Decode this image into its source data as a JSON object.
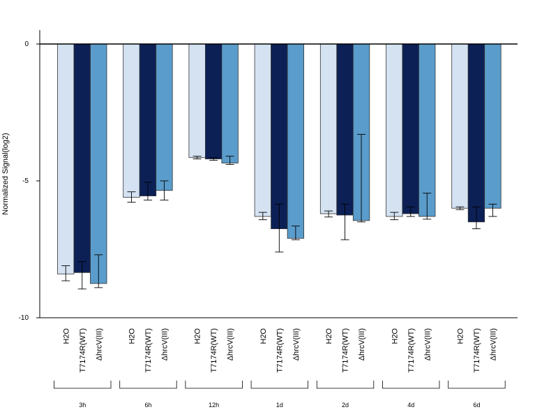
{
  "chart_data": {
    "type": "bar",
    "ylabel": "Normalized Signal(log2)",
    "xlabel": "",
    "ylim": [
      -10,
      0.5
    ],
    "yticks": [
      0,
      -5,
      -10
    ],
    "groups": [
      "3h",
      "6h",
      "12h",
      "1d",
      "2d",
      "4d",
      "6d"
    ],
    "bar_labels": [
      "H2O",
      "T7174R(WT)",
      "ΔhrcV(III)"
    ],
    "series": [
      {
        "color": "#d4e2f2",
        "values": [
          -8.4,
          -5.6,
          -4.15,
          -6.3,
          -6.2,
          -6.3,
          -6.0
        ],
        "err_low": [
          -8.65,
          -5.78,
          -4.2,
          -6.42,
          -6.32,
          -6.42,
          -6.05
        ],
        "err_high": [
          -8.1,
          -5.4,
          -4.1,
          -6.15,
          -6.1,
          -6.15,
          -5.95
        ]
      },
      {
        "color": "#0c2056",
        "values": [
          -8.35,
          -5.55,
          -4.2,
          -6.75,
          -6.25,
          -6.2,
          -6.5
        ],
        "err_low": [
          -8.95,
          -5.7,
          -4.25,
          -7.6,
          -7.15,
          -6.3,
          -6.75
        ],
        "err_high": [
          -7.95,
          -5.05,
          -4.15,
          -5.85,
          -5.85,
          -5.95,
          -5.95
        ]
      },
      {
        "color": "#5a9ccb",
        "values": [
          -8.75,
          -5.35,
          -4.35,
          -7.1,
          -6.45,
          -6.3,
          -6.0
        ],
        "err_low": [
          -8.9,
          -5.7,
          -4.4,
          -7.15,
          -6.5,
          -6.4,
          -6.3
        ],
        "err_high": [
          -7.7,
          -5.0,
          -4.1,
          -6.65,
          -3.3,
          -5.45,
          -5.85
        ]
      }
    ]
  }
}
